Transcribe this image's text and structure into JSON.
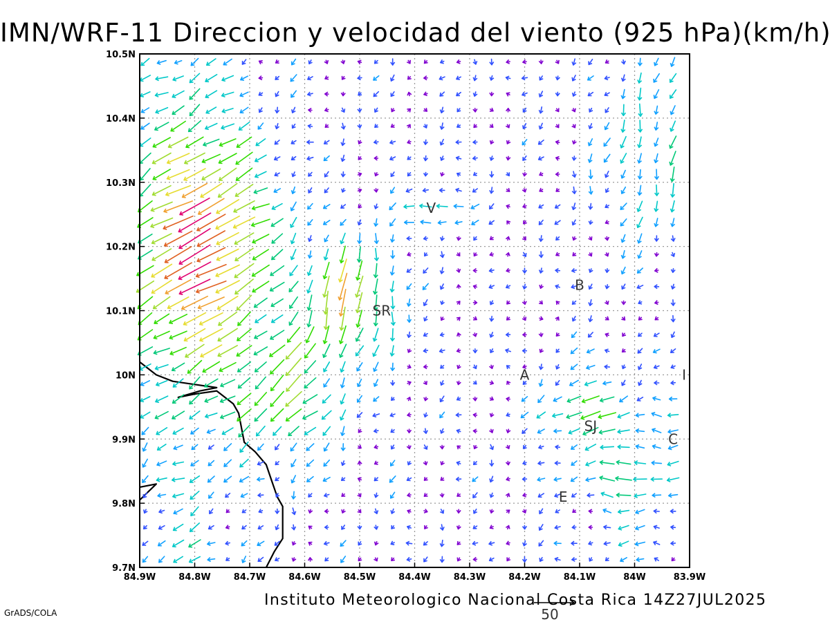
{
  "title": "IMN/WRF-11 Direccion y velocidad del viento (925 hPa)(km/h)",
  "footer": {
    "credit": "Instituto Meteorologico Nacional Costa Rica 14Z27JUL2025",
    "software": "GrADS/COLA"
  },
  "map": {
    "lon_range": [
      -84.9,
      -83.9
    ],
    "lat_range": [
      9.7,
      10.5
    ],
    "grid": true,
    "lon_ticks": [
      {
        "value": -84.9,
        "label": "84.9W"
      },
      {
        "value": -84.8,
        "label": "84.8W"
      },
      {
        "value": -84.7,
        "label": "84.7W"
      },
      {
        "value": -84.6,
        "label": "84.6W"
      },
      {
        "value": -84.5,
        "label": "84.5W"
      },
      {
        "value": -84.4,
        "label": "84.4W"
      },
      {
        "value": -84.3,
        "label": "84.3W"
      },
      {
        "value": -84.2,
        "label": "84.2W"
      },
      {
        "value": -84.1,
        "label": "84.1W"
      },
      {
        "value": -84.0,
        "label": "84W"
      },
      {
        "value": -83.9,
        "label": "83.9W"
      }
    ],
    "lat_ticks": [
      {
        "value": 9.7,
        "label": "9.7N"
      },
      {
        "value": 9.8,
        "label": "9.8N"
      },
      {
        "value": 9.9,
        "label": "9.9N"
      },
      {
        "value": 10.0,
        "label": "10N"
      },
      {
        "value": 10.1,
        "label": "10.1N"
      },
      {
        "value": 10.2,
        "label": "10.2N"
      },
      {
        "value": 10.3,
        "label": "10.3N"
      },
      {
        "value": 10.4,
        "label": "10.4N"
      },
      {
        "value": 10.5,
        "label": "10.5N"
      }
    ],
    "places": [
      {
        "label": "V",
        "lon": -84.37,
        "lat": 10.26
      },
      {
        "label": "B",
        "lon": -84.1,
        "lat": 10.14
      },
      {
        "label": "SR",
        "lon": -84.46,
        "lat": 10.1
      },
      {
        "label": "A",
        "lon": -84.2,
        "lat": 10.0
      },
      {
        "label": "I",
        "lon": -83.91,
        "lat": 10.0
      },
      {
        "label": "SJ",
        "lon": -84.08,
        "lat": 9.92
      },
      {
        "label": "C",
        "lon": -83.93,
        "lat": 9.9
      },
      {
        "label": "E",
        "lon": -84.13,
        "lat": 9.81
      }
    ],
    "coastline": [
      [
        [
          -84.9,
          10.02
        ],
        [
          -84.87,
          10.0
        ],
        [
          -84.84,
          9.99
        ],
        [
          -84.8,
          9.985
        ],
        [
          -84.76,
          9.98
        ],
        [
          -84.79,
          9.975
        ],
        [
          -84.83,
          9.965
        ],
        [
          -84.8,
          9.97
        ],
        [
          -84.76,
          9.975
        ],
        [
          -84.73,
          9.955
        ],
        [
          -84.72,
          9.94
        ],
        [
          -84.71,
          9.895
        ],
        [
          -84.69,
          9.88
        ],
        [
          -84.67,
          9.86
        ],
        [
          -84.66,
          9.835
        ],
        [
          -84.65,
          9.81
        ],
        [
          -84.64,
          9.795
        ],
        [
          -84.64,
          9.77
        ],
        [
          -84.64,
          9.745
        ],
        [
          -84.655,
          9.725
        ],
        [
          -84.67,
          9.7
        ]
      ],
      [
        [
          -84.9,
          9.825
        ],
        [
          -84.87,
          9.83
        ],
        [
          -84.9,
          9.805
        ]
      ]
    ],
    "wind": {
      "units": "km/h",
      "reference_vector_label": "50",
      "reference_speed": 50,
      "lon_step": 0.03,
      "lat_step": 0.025,
      "speed_colors": [
        "#8000d0",
        "#3050ff",
        "#10a0ff",
        "#00c8c8",
        "#00c878",
        "#30dc00",
        "#a0dc30",
        "#e6dc30",
        "#f0a030",
        "#e06020",
        "#e00070"
      ]
    }
  }
}
